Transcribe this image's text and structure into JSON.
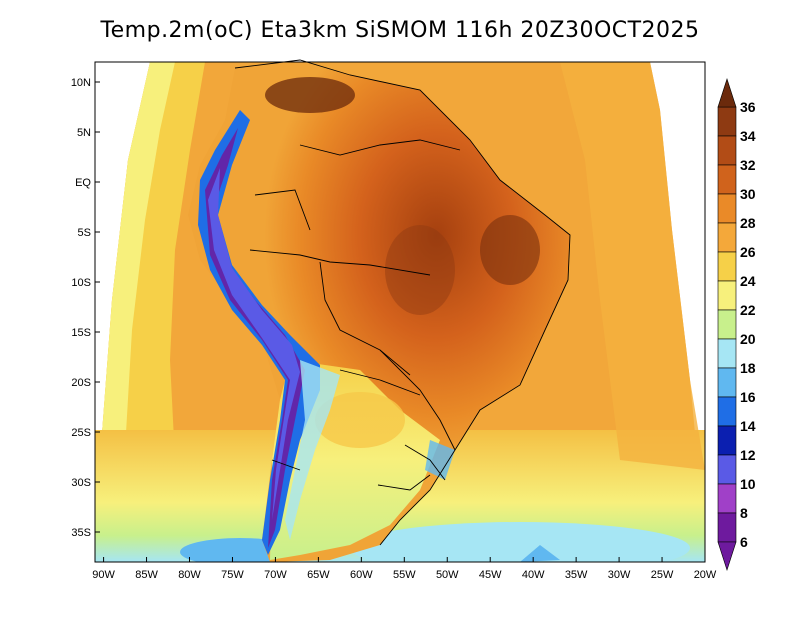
{
  "title": "Temp.2m(oC) Eta3km SiSMOM 116h 20Z30OCT2025",
  "map": {
    "lat_labels": [
      "10N",
      "5N",
      "EQ",
      "5S",
      "10S",
      "15S",
      "20S",
      "25S",
      "30S",
      "35S"
    ],
    "lat_values": [
      10,
      5,
      0,
      -5,
      -10,
      -15,
      -20,
      -25,
      -30,
      -35
    ],
    "lon_labels": [
      "90W",
      "85W",
      "80W",
      "75W",
      "70W",
      "65W",
      "60W",
      "55W",
      "50W",
      "45W",
      "40W",
      "35W",
      "30W",
      "25W",
      "20W"
    ],
    "lon_values": [
      -90,
      -85,
      -80,
      -75,
      -70,
      -65,
      -60,
      -55,
      -50,
      -45,
      -40,
      -35,
      -30,
      -25,
      -20
    ],
    "lat_range": [
      12,
      -38
    ],
    "lon_range": [
      -91,
      -20
    ]
  },
  "colorbar": {
    "labels": [
      "36",
      "34",
      "32",
      "30",
      "28",
      "26",
      "24",
      "22",
      "20",
      "18",
      "16",
      "14",
      "12",
      "10",
      "8",
      "6"
    ],
    "colors": [
      "#6b2a0c",
      "#8e3a12",
      "#b24c16",
      "#d0631c",
      "#ea8a28",
      "#f4a83a",
      "#f6d048",
      "#f7f07c",
      "#c8f08c",
      "#a6e6f4",
      "#60b8f0",
      "#1f6ee6",
      "#0b1fb0",
      "#5a5ae6",
      "#a040c8",
      "#6e1a9e"
    ],
    "min": 6,
    "max": 36
  }
}
